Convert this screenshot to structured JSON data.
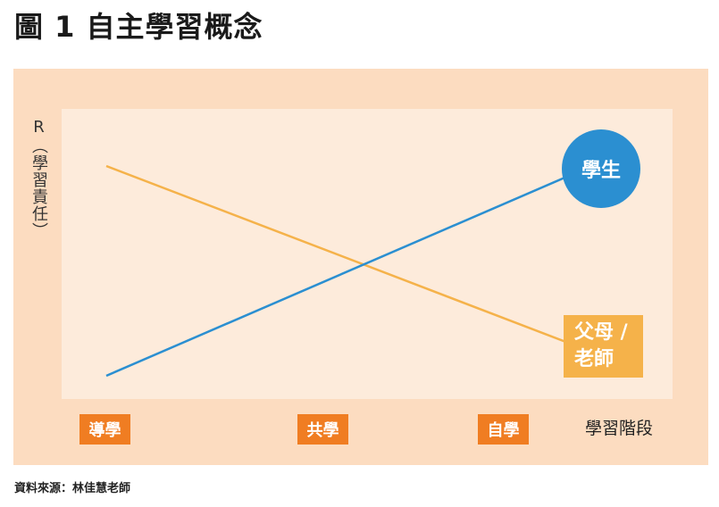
{
  "title": "圖 1  自主學習概念",
  "y_axis_label": "R（學習責任）",
  "lines": {
    "student": {
      "label": "學生",
      "color": "#2b8fd1"
    },
    "parent_teacher": {
      "label_line1": "父母 /",
      "label_line2": "老師",
      "color": "#f5b24a"
    }
  },
  "stages": [
    "導學",
    "共學",
    "自學"
  ],
  "x_axis_label": "學習階段",
  "source": "資料來源：林佳慧老師",
  "colors": {
    "outer_bg": "#fcdcc0",
    "plot_bg": "#fdebdb",
    "stage_box": "#f07d22"
  }
}
